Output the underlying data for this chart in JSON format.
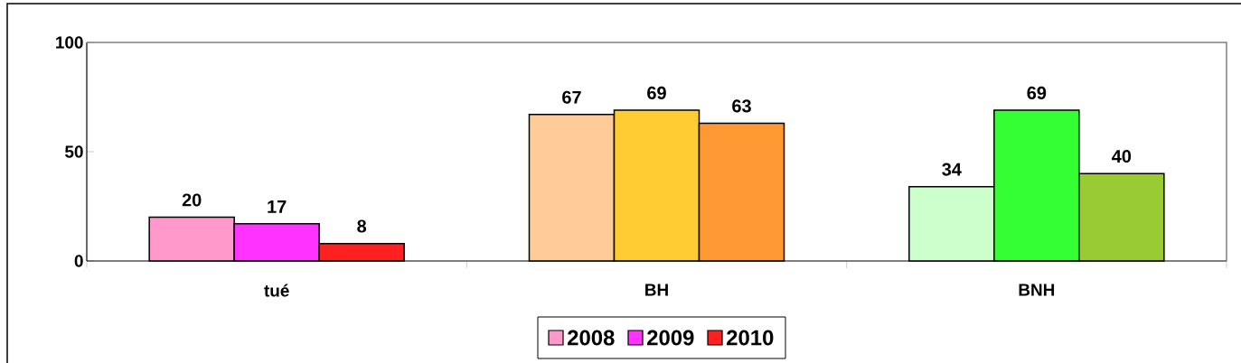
{
  "chart_data": {
    "type": "bar",
    "categories": [
      "tué",
      "BH",
      "BNH"
    ],
    "series": [
      {
        "name": "2008",
        "color": "#ff99cc",
        "colors": [
          "#ff99cc",
          "#ffcc99",
          "#ccffcc"
        ],
        "values": [
          20,
          67,
          34
        ]
      },
      {
        "name": "2009",
        "color": "#ff33ff",
        "colors": [
          "#ff33ff",
          "#ffcc33",
          "#33ff33"
        ],
        "values": [
          17,
          69,
          69
        ]
      },
      {
        "name": "2010",
        "color": "#ff2020",
        "colors": [
          "#ff2020",
          "#ff9933",
          "#99cc33"
        ],
        "values": [
          8,
          63,
          40
        ]
      }
    ],
    "ylim": [
      0,
      100
    ],
    "yticks": [
      0,
      50,
      100
    ],
    "data_labels": true,
    "legend": "bottom",
    "grid": false
  }
}
